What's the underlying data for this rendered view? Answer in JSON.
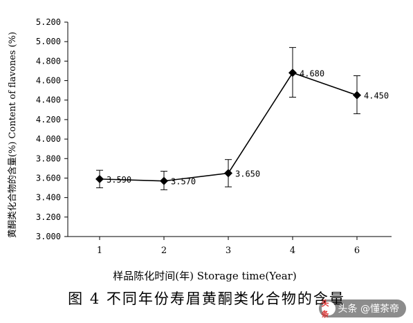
{
  "chart_data": {
    "type": "line",
    "categories": [
      "1",
      "2",
      "3",
      "4",
      "6"
    ],
    "values": [
      3.59,
      3.57,
      3.65,
      4.68,
      4.45
    ],
    "value_labels": [
      "3.590",
      "3.570",
      "3.650",
      "4.680",
      "4.450"
    ],
    "error_low": [
      3.5,
      3.48,
      3.51,
      4.43,
      4.26
    ],
    "error_high": [
      3.68,
      3.67,
      3.79,
      4.94,
      4.65
    ],
    "ylim": [
      3.0,
      5.2
    ],
    "yticks": [
      "3.000",
      "3.200",
      "3.400",
      "3.600",
      "3.800",
      "4.000",
      "4.200",
      "4.400",
      "4.600",
      "4.800",
      "5.000",
      "5.200"
    ],
    "ytick_values": [
      3.0,
      3.2,
      3.4,
      3.6,
      3.8,
      4.0,
      4.2,
      4.4,
      4.6,
      4.8,
      5.0,
      5.2
    ],
    "xlabel": "样品陈化时间(年) Storage time(Year)",
    "ylabel": "黄酮类化合物的含量(%) Content of flavones (%)",
    "grid": false,
    "marker": "diamond",
    "line_color": "#000000"
  },
  "caption": "图 4 不同年份寿眉黄酮类化合物的含量",
  "watermark": {
    "text": "头条 @懂茶帝",
    "logo": "头条"
  }
}
